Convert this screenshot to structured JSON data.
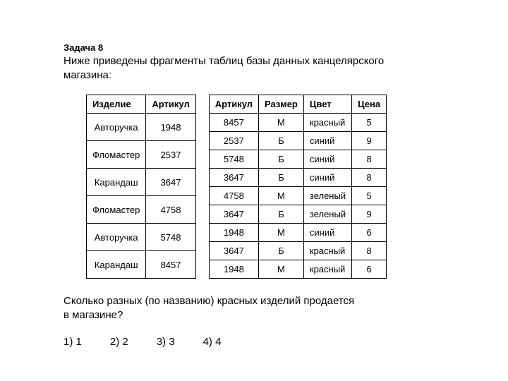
{
  "task_number": "Задача 8",
  "task_prompt_line1": "Ниже приведены фрагменты таблиц базы данных канцелярского",
  "task_prompt_line2": "магазина:",
  "table_left": {
    "headers": [
      "Изделие",
      "Артикул"
    ],
    "rows": [
      [
        "Авторучка",
        "1948"
      ],
      [
        "Фломастер",
        "2537"
      ],
      [
        "Карандаш",
        "3647"
      ],
      [
        "Фломастер",
        "4758"
      ],
      [
        "Авторучка",
        "5748"
      ],
      [
        "Карандаш",
        "8457"
      ]
    ]
  },
  "table_right": {
    "headers": [
      "Артикул",
      "Размер",
      "Цвет",
      "Цена"
    ],
    "rows": [
      [
        "8457",
        "М",
        "красный",
        "5"
      ],
      [
        "2537",
        "Б",
        "синий",
        "9"
      ],
      [
        "5748",
        "Б",
        "синий",
        "8"
      ],
      [
        "3647",
        "Б",
        "синий",
        "8"
      ],
      [
        "4758",
        "М",
        "зеленый",
        "5"
      ],
      [
        "3647",
        "Б",
        "зеленый",
        "9"
      ],
      [
        "1948",
        "М",
        "синий",
        "6"
      ],
      [
        "3647",
        "Б",
        "красный",
        "8"
      ],
      [
        "1948",
        "М",
        "красный",
        "6"
      ]
    ]
  },
  "question_line1": "Сколько разных (по названию) красных изделий продается",
  "question_line2": "в магазине?",
  "answers": [
    "1) 1",
    "2) 2",
    "3) 3",
    "4) 4"
  ],
  "colors": {
    "text": "#000000",
    "background": "#ffffff",
    "border": "#000000"
  }
}
